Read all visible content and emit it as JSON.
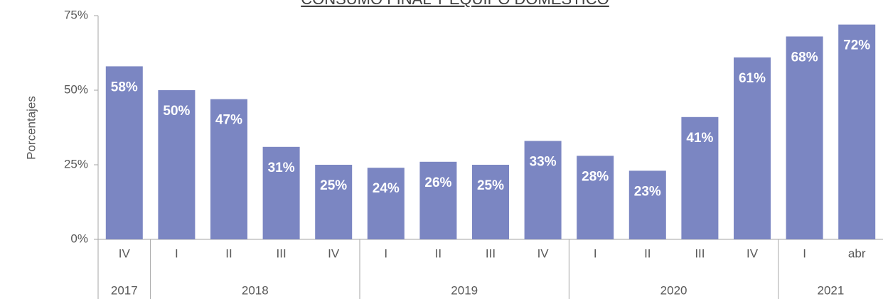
{
  "chart_data": {
    "type": "bar",
    "title": "CONSUMO FINAL Y EQUIPO DOMÉSTICO",
    "y_label": "Porcentajes",
    "categories": [
      "IV",
      "I",
      "II",
      "III",
      "IV",
      "I",
      "II",
      "III",
      "IV",
      "I",
      "II",
      "III",
      "IV",
      "I",
      "abr"
    ],
    "groups": [
      {
        "label": "2017",
        "span": 1
      },
      {
        "label": "2018",
        "span": 4
      },
      {
        "label": "2019",
        "span": 4
      },
      {
        "label": "2020",
        "span": 4
      },
      {
        "label": "2021",
        "span": 2
      }
    ],
    "values": [
      58,
      50,
      47,
      31,
      25,
      24,
      26,
      25,
      33,
      28,
      23,
      41,
      61,
      68,
      72
    ],
    "value_labels": [
      "58%",
      "50%",
      "47%",
      "31%",
      "25%",
      "24%",
      "26%",
      "25%",
      "33%",
      "28%",
      "23%",
      "41%",
      "61%",
      "68%",
      "72%"
    ],
    "color": "#7b86c2",
    "ylim": [
      0,
      75
    ],
    "yticks": [
      {
        "value": 0,
        "label": "0%"
      },
      {
        "value": 25,
        "label": "25%"
      },
      {
        "value": 50,
        "label": "50%"
      },
      {
        "value": 75,
        "label": "75%"
      }
    ]
  }
}
